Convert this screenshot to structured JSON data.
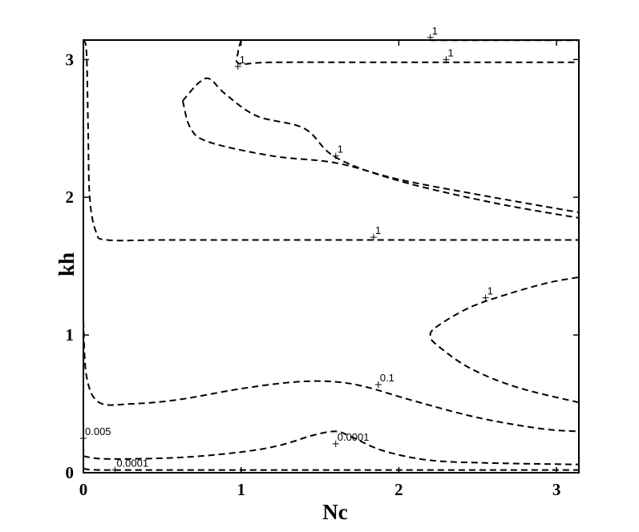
{
  "chart_data": {
    "type": "contour",
    "title": "",
    "xlabel": "Nc",
    "ylabel": "kh",
    "xlim": [
      0,
      3.1416
    ],
    "ylim": [
      0,
      3.1416
    ],
    "xticks": [
      "0",
      "1",
      "2",
      "3"
    ],
    "yticks": [
      "0",
      "1",
      "2",
      "3"
    ],
    "grid": false,
    "line_style": "dashed",
    "line_color": "#000000",
    "contours": [
      {
        "level": "1",
        "points": [
          [
            1.0,
            3.1416
          ],
          [
            0.98,
            3.05
          ],
          [
            0.99,
            2.97
          ],
          [
            1.2,
            2.98
          ],
          [
            2.0,
            2.98
          ],
          [
            3.1416,
            2.98
          ]
        ]
      },
      {
        "level": "1",
        "points": [
          [
            0.63,
            2.7
          ],
          [
            0.68,
            2.5
          ],
          [
            0.8,
            2.4
          ],
          [
            1.2,
            2.3
          ],
          [
            1.6,
            2.25
          ],
          [
            2.0,
            2.13
          ],
          [
            2.5,
            2.02
          ],
          [
            3.1416,
            1.89
          ]
        ]
      },
      {
        "level": "1",
        "points": [
          [
            0.63,
            2.7
          ],
          [
            0.73,
            2.83
          ],
          [
            0.8,
            2.86
          ],
          [
            0.9,
            2.75
          ],
          [
            1.1,
            2.59
          ],
          [
            1.4,
            2.5
          ],
          [
            1.6,
            2.29
          ],
          [
            2.0,
            2.12
          ],
          [
            2.6,
            1.96
          ],
          [
            3.1416,
            1.85
          ]
        ]
      },
      {
        "level": "1",
        "points": [
          [
            0.0,
            3.1416
          ],
          [
            0.02,
            3.05
          ],
          [
            0.03,
            2.5
          ],
          [
            0.04,
            2.0
          ],
          [
            0.08,
            1.75
          ],
          [
            0.15,
            1.69
          ],
          [
            0.5,
            1.69
          ],
          [
            1.0,
            1.69
          ],
          [
            2.0,
            1.69
          ],
          [
            3.1416,
            1.69
          ]
        ]
      },
      {
        "level": "1",
        "points": [
          [
            2.2,
            3.14
          ],
          [
            2.5,
            3.14
          ],
          [
            3.1416,
            3.14
          ]
        ]
      },
      {
        "level": "1",
        "points": [
          [
            3.1416,
            0.51
          ],
          [
            2.75,
            0.62
          ],
          [
            2.45,
            0.76
          ],
          [
            2.25,
            0.92
          ],
          [
            2.2,
            0.99
          ],
          [
            2.24,
            1.06
          ],
          [
            2.45,
            1.2
          ],
          [
            2.7,
            1.3
          ],
          [
            2.95,
            1.38
          ],
          [
            3.1416,
            1.42
          ]
        ]
      },
      {
        "level": "0.1",
        "points": [
          [
            0.0,
            1.1
          ],
          [
            0.02,
            0.7
          ],
          [
            0.1,
            0.51
          ],
          [
            0.3,
            0.5
          ],
          [
            0.6,
            0.53
          ],
          [
            1.0,
            0.61
          ],
          [
            1.35,
            0.66
          ],
          [
            1.6,
            0.66
          ],
          [
            1.8,
            0.62
          ],
          [
            2.1,
            0.52
          ],
          [
            2.5,
            0.4
          ],
          [
            2.9,
            0.32
          ],
          [
            3.1416,
            0.3
          ]
        ]
      },
      {
        "level": "0.005",
        "points": [
          [
            0.0,
            0.0
          ],
          [
            0.0,
            0.28
          ]
        ]
      },
      {
        "level": "0.0001",
        "points": [
          [
            0.0,
            0.12
          ],
          [
            0.15,
            0.1
          ],
          [
            0.6,
            0.11
          ],
          [
            1.0,
            0.15
          ],
          [
            1.25,
            0.2
          ],
          [
            1.45,
            0.27
          ],
          [
            1.6,
            0.3
          ],
          [
            1.7,
            0.26
          ],
          [
            1.9,
            0.16
          ],
          [
            2.2,
            0.09
          ],
          [
            2.6,
            0.07
          ],
          [
            3.1416,
            0.06
          ]
        ]
      },
      {
        "level": "0.0001",
        "points": [
          [
            0.0,
            0.03
          ],
          [
            0.1,
            0.02
          ],
          [
            0.6,
            0.02
          ],
          [
            1.5,
            0.02
          ],
          [
            3.1416,
            0.02
          ]
        ]
      }
    ],
    "contour_labels": [
      {
        "text": "1",
        "x": 2.2,
        "y": 3.16
      },
      {
        "text": "1",
        "x": 2.3,
        "y": 3.0
      },
      {
        "text": "1",
        "x": 0.98,
        "y": 2.95
      },
      {
        "text": "1",
        "x": 1.6,
        "y": 2.3
      },
      {
        "text": "1",
        "x": 1.84,
        "y": 1.71
      },
      {
        "text": "1",
        "x": 2.55,
        "y": 1.27
      },
      {
        "text": "0.1",
        "x": 1.87,
        "y": 0.64
      },
      {
        "text": "0.005",
        "x": 0.0,
        "y": 0.25
      },
      {
        "text": "0.0001",
        "x": 1.6,
        "y": 0.21
      },
      {
        "text": "0.0001",
        "x": 0.2,
        "y": 0.02
      }
    ]
  }
}
